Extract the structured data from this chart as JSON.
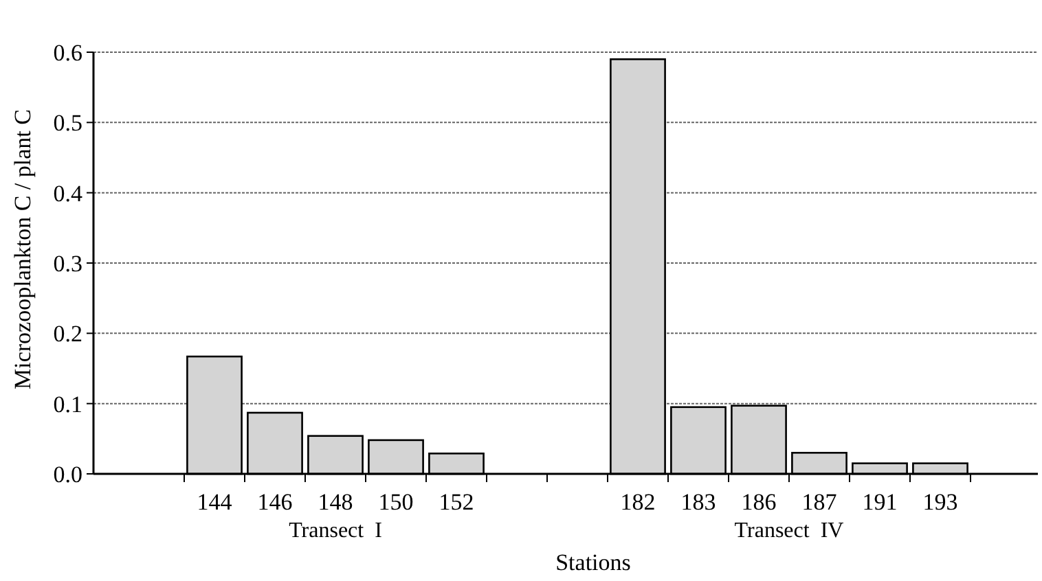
{
  "chart_data": {
    "type": "bar",
    "xlabel": "Stations",
    "ylabel": "Microzooplankton C / plant C",
    "categories": [
      null,
      "144",
      "146",
      "148",
      "150",
      "152",
      null,
      null,
      "182",
      "183",
      "186",
      "187",
      "191",
      "193",
      null
    ],
    "values": [
      null,
      0.167,
      0.087,
      0.054,
      0.048,
      0.029,
      null,
      null,
      0.59,
      0.095,
      0.097,
      0.03,
      0.015,
      0.015,
      null
    ],
    "color": "#d4d4d4",
    "ylim": [
      0,
      0.6
    ],
    "yticks": [
      {
        "value": 0,
        "label": "0.0"
      },
      0.1,
      0.2,
      0.3,
      0.4,
      0.5,
      0.6
    ],
    "grid": "y",
    "annotations": [
      "Transect  I",
      "Transect  IV"
    ]
  }
}
